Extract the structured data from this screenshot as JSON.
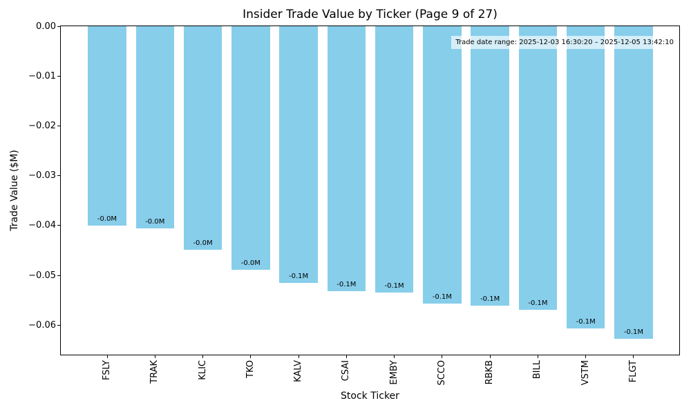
{
  "chart_data": {
    "type": "bar",
    "title": "Insider Trade Value by Ticker (Page 9 of 27)",
    "xlabel": "Stock Ticker",
    "ylabel": "Trade Value ($M)",
    "annotation": "Trade date range: 2025-12-03 16:30:20 – 2025-12-05 13:42:10",
    "categories": [
      "FSLY",
      "TRAK",
      "KLIC",
      "TKO",
      "KALV",
      "CSAI",
      "EMBY",
      "SCCO",
      "RBKB",
      "BILL",
      "VSTM",
      "FLGT"
    ],
    "values": [
      -0.04,
      -0.0406,
      -0.0448,
      -0.0489,
      -0.0515,
      -0.0532,
      -0.0534,
      -0.0557,
      -0.0561,
      -0.0569,
      -0.0606,
      -0.0627
    ],
    "bar_labels": [
      "-0.0M",
      "-0.0M",
      "-0.0M",
      "-0.0M",
      "-0.1M",
      "-0.1M",
      "-0.1M",
      "-0.1M",
      "-0.1M",
      "-0.1M",
      "-0.1M",
      "-0.1M"
    ],
    "ytick_values": [
      0,
      -0.01,
      -0.02,
      -0.03,
      -0.04,
      -0.05,
      -0.06
    ],
    "ytick_labels": [
      "0.00",
      "−0.01",
      "−0.02",
      "−0.03",
      "−0.04",
      "−0.05",
      "−0.06"
    ],
    "ylim": [
      -0.0659,
      0
    ],
    "bar_color": "#87CEEB",
    "axis_color": "#000000",
    "grid": false,
    "legend": null
  }
}
